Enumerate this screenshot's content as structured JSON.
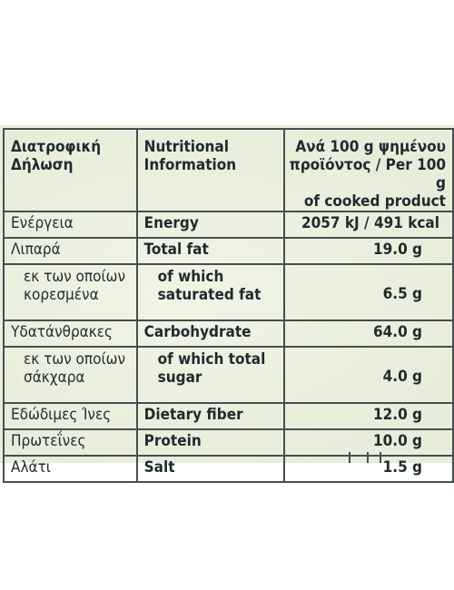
{
  "table": {
    "header": {
      "greek": "Διατροφική\nΔήλωση",
      "english": "Nutritional\nInformation",
      "per": "Ανά 100 g ψημένου\nπροϊόντος / Per 100 g\nof cooked product"
    },
    "rows": [
      {
        "greek": "Ενέργεια",
        "english": "Energy",
        "value": "2057 kJ / 491 kcal"
      },
      {
        "greek": "Λιπαρά",
        "english": "Total fat",
        "value": "19.0 g"
      },
      {
        "greek": "εκ των οποίων\nκορεσμένα",
        "english": "of which\nsaturated fat",
        "value": "6.5 g"
      },
      {
        "greek": "Υδατάνθρακες",
        "english": "Carbohydrate",
        "value": "64.0 g"
      },
      {
        "greek": "εκ των οποίων\nσάκχαρα",
        "english": "of which total\nsugar",
        "value": "4.0 g"
      },
      {
        "greek": "Εδώδιμες Ίνες",
        "english": "Dietary fiber",
        "value": "12.0 g"
      },
      {
        "greek": "Πρωτεΐνες",
        "english": "Protein",
        "value": "10.0 g"
      },
      {
        "greek": "Αλάτι",
        "english": "Salt",
        "value": "1.5 g"
      }
    ]
  },
  "colors": {
    "label_background": "#ecf0df",
    "text": "#1f2b2c",
    "rules": "#43504f"
  }
}
